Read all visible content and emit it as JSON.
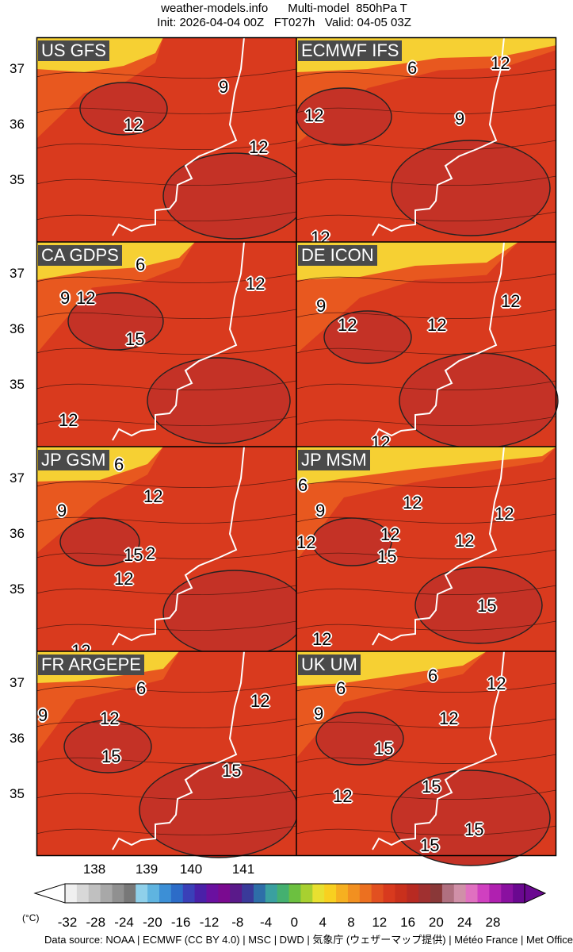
{
  "header": {
    "site": "weather-models.info",
    "product": "Multi-model  850hPa T",
    "init": "Init: 2026-04-04 00Z",
    "forecast_hour": "FT027h",
    "valid": "Valid: 04-05 03Z"
  },
  "panels": [
    {
      "name": "US GFS",
      "labels": [
        {
          "text": "9"
        },
        {
          "text": "12"
        },
        {
          "text": "12"
        }
      ]
    },
    {
      "name": "ECMWF IFS",
      "labels": [
        {
          "text": "6"
        },
        {
          "text": "12"
        },
        {
          "text": "9"
        },
        {
          "text": "12"
        },
        {
          "text": "12"
        }
      ]
    },
    {
      "name": "CA GDPS",
      "labels": [
        {
          "text": "6"
        },
        {
          "text": "9"
        },
        {
          "text": "12"
        },
        {
          "text": "12"
        },
        {
          "text": "15"
        },
        {
          "text": "12"
        }
      ]
    },
    {
      "name": "DE ICON",
      "labels": [
        {
          "text": "9"
        },
        {
          "text": "12"
        },
        {
          "text": "12"
        },
        {
          "text": "12"
        },
        {
          "text": "12"
        }
      ]
    },
    {
      "name": "JP GSM",
      "labels": [
        {
          "text": "6"
        },
        {
          "text": "9"
        },
        {
          "text": "12"
        },
        {
          "text": "15"
        },
        {
          "text": "2"
        },
        {
          "text": "12"
        },
        {
          "text": "12"
        }
      ]
    },
    {
      "name": "JP MSM",
      "labels": [
        {
          "text": "6"
        },
        {
          "text": "9"
        },
        {
          "text": "12"
        },
        {
          "text": "12"
        },
        {
          "text": "12"
        },
        {
          "text": "12"
        },
        {
          "text": "12"
        },
        {
          "text": "15"
        },
        {
          "text": "15"
        },
        {
          "text": "12"
        }
      ]
    },
    {
      "name": "FR ARGEPE",
      "labels": [
        {
          "text": "6"
        },
        {
          "text": "9"
        },
        {
          "text": "12"
        },
        {
          "text": "12"
        },
        {
          "text": "15"
        },
        {
          "text": "15"
        }
      ]
    },
    {
      "name": "UK UM",
      "labels": [
        {
          "text": "6"
        },
        {
          "text": "6"
        },
        {
          "text": "12"
        },
        {
          "text": "9"
        },
        {
          "text": "12"
        },
        {
          "text": "15"
        },
        {
          "text": "15"
        },
        {
          "text": "12"
        },
        {
          "text": "15"
        },
        {
          "text": "15"
        }
      ]
    }
  ],
  "axes": {
    "y_ticks": [
      "37",
      "36",
      "35"
    ],
    "x_ticks": [
      "138",
      "139",
      "140",
      "141"
    ]
  },
  "colorbar": {
    "unit": "(°C)",
    "ticks": [
      "-32",
      "-28",
      "-24",
      "-20",
      "-16",
      "-12",
      "-8",
      "-4",
      "0",
      "4",
      "8",
      "12",
      "16",
      "20",
      "24",
      "28"
    ],
    "colors": [
      "#f0f0f0",
      "#d8d8d8",
      "#c0c0c0",
      "#a8a8a8",
      "#909090",
      "#787878",
      "#8fd0ea",
      "#5fb4e0",
      "#3c8fd6",
      "#2c6cc8",
      "#3a40b8",
      "#4a20a8",
      "#6a10a0",
      "#7a0a90",
      "#5a1a8a",
      "#3a3a9a",
      "#2e6ea8",
      "#3aa0a0",
      "#44b070",
      "#6cc040",
      "#a8d030",
      "#e8e030",
      "#f8d020",
      "#f6b020",
      "#f29020",
      "#ec7020",
      "#e25020",
      "#d83a1e",
      "#c9301c",
      "#b82a22",
      "#a03030",
      "#8a3838",
      "#b07080",
      "#d090a8",
      "#e070c0",
      "#d040c0",
      "#b020b0",
      "#8a10a0",
      "#6a0890"
    ],
    "accent_hot": "#d93a1e",
    "accent_warm": "#e8581f",
    "accent_cold": "#f6d033"
  },
  "footer": {
    "source": "Data source:  NOAA | ECMWF (CC BY 4.0) | MSC | DWD | 気象庁 (ウェザーマップ提供) | Météo France | Met Office"
  }
}
